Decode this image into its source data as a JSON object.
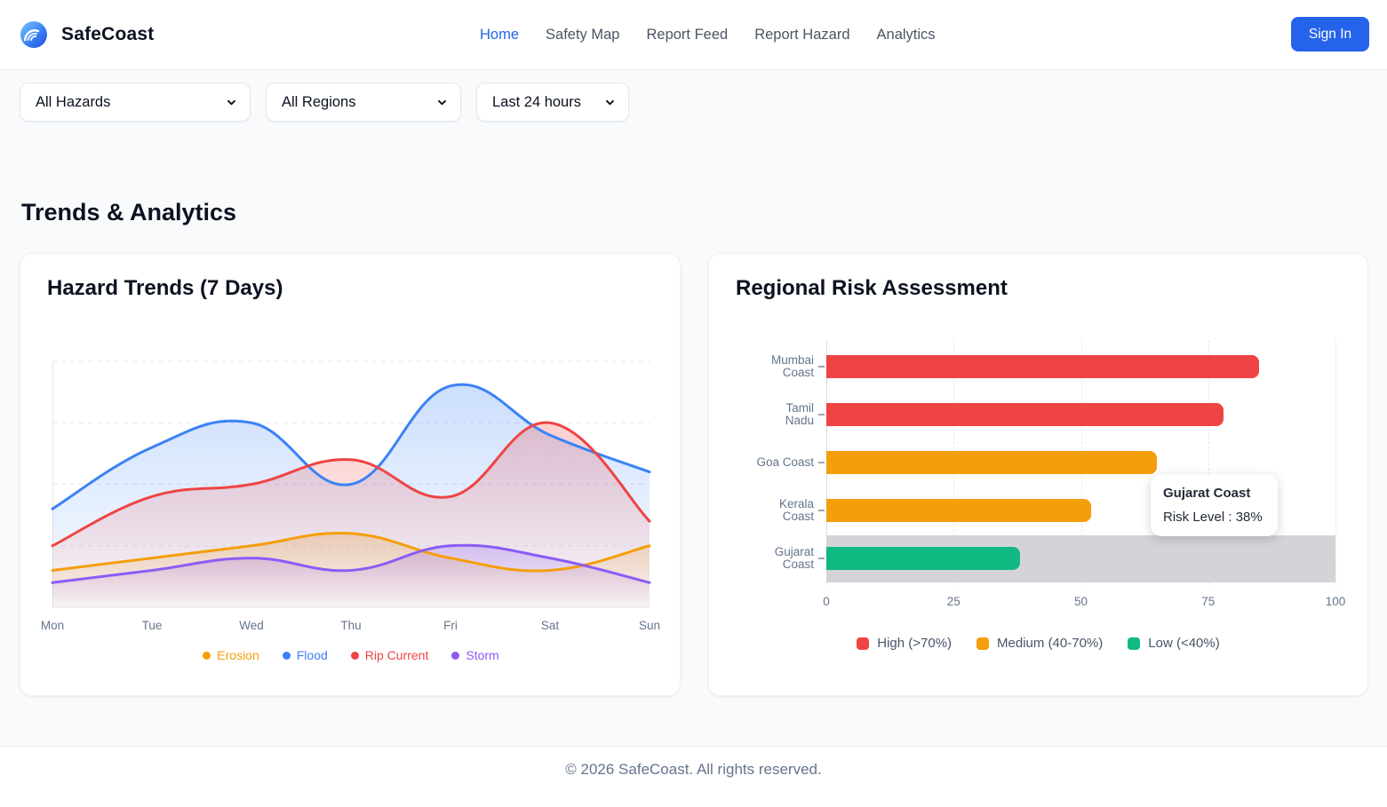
{
  "brand": {
    "name": "SafeCoast",
    "logo_icon": "wave-icon"
  },
  "nav": {
    "items": [
      {
        "label": "Home",
        "active": true
      },
      {
        "label": "Safety Map",
        "active": false
      },
      {
        "label": "Report Feed",
        "active": false
      },
      {
        "label": "Report Hazard",
        "active": false
      },
      {
        "label": "Analytics",
        "active": false
      }
    ],
    "sign_in_label": "Sign In"
  },
  "filters": [
    {
      "name": "hazard-filter",
      "value": "All Hazards"
    },
    {
      "name": "region-filter",
      "value": "All Regions"
    },
    {
      "name": "time-filter",
      "value": "Last 24 hours"
    }
  ],
  "section_title": "Trends & Analytics",
  "colors": {
    "accent_blue": "#2563eb",
    "active_nav": "#2563eb",
    "highlight_band": "#d4d4d8",
    "grid": "#e5e7eb",
    "muted_text": "#64748b"
  },
  "chart_data": [
    {
      "type": "line",
      "title": "Hazard Trends (7 Days)",
      "categories": [
        "Mon",
        "Tue",
        "Wed",
        "Thu",
        "Fri",
        "Sat",
        "Sun"
      ],
      "series": [
        {
          "name": "Erosion",
          "color": "#F59E0B",
          "values": [
            15,
            20,
            25,
            30,
            20,
            15,
            25
          ]
        },
        {
          "name": "Flood",
          "color": "#3B82F6",
          "values": [
            40,
            65,
            75,
            50,
            90,
            70,
            55
          ]
        },
        {
          "name": "Rip Current",
          "color": "#EF4444",
          "values": [
            25,
            45,
            50,
            60,
            45,
            75,
            35
          ]
        },
        {
          "name": "Storm",
          "color": "#8B5CF6",
          "values": [
            10,
            15,
            20,
            15,
            25,
            20,
            10
          ]
        }
      ],
      "xlabel": "",
      "ylabel": "",
      "ylim": [
        0,
        100
      ],
      "y_gridlines": [
        0,
        25,
        50,
        75,
        100
      ],
      "y_tick_labels_hidden": true,
      "grid": "horizontal-dashed",
      "smooth": true,
      "area_fill": true,
      "legend_position": "bottom"
    },
    {
      "type": "bar",
      "title": "Regional Risk Assessment",
      "orientation": "horizontal",
      "categories": [
        "Mumbai Coast",
        "Tamil Nadu",
        "Goa Coast",
        "Kerala Coast",
        "Gujarat Coast"
      ],
      "values": [
        85,
        78,
        65,
        52,
        38
      ],
      "bar_colors": [
        "#EF4444",
        "#EF4444",
        "#F59E0B",
        "#F59E0B",
        "#10B981"
      ],
      "xlabel": "",
      "ylabel": "",
      "xlim": [
        0,
        100
      ],
      "x_ticks": [
        0,
        25,
        50,
        75,
        100
      ],
      "grid": "vertical-dashed",
      "legend_position": "bottom",
      "legend": [
        {
          "label": "High (>70%)",
          "color": "#EF4444"
        },
        {
          "label": "Medium (40-70%)",
          "color": "#F59E0B"
        },
        {
          "label": "Low (<40%)",
          "color": "#10B981"
        }
      ],
      "highlighted_category": "Gujarat Coast",
      "tooltip": {
        "title": "Gujarat Coast",
        "line": "Risk Level : 38%"
      }
    }
  ],
  "footer": {
    "text": "© 2026 SafeCoast. All rights reserved."
  }
}
